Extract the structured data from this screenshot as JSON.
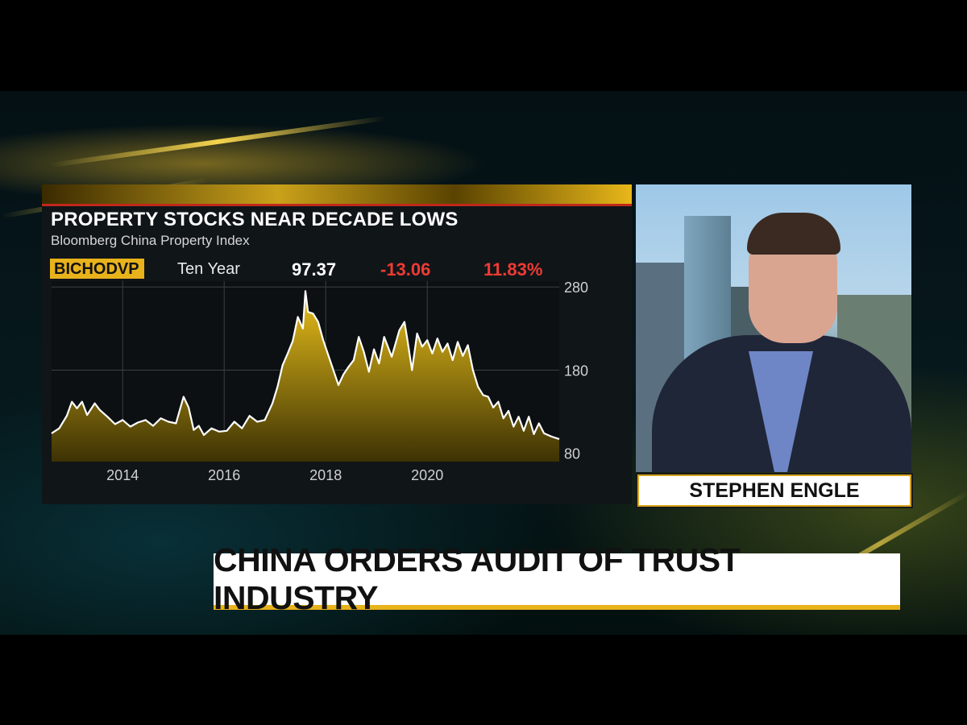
{
  "chart_data": {
    "type": "area",
    "title": "PROPERTY STOCKS NEAR DECADE LOWS",
    "subtitle": "Bloomberg China Property Index",
    "ticker": "BICHODVP",
    "period": "Ten Year",
    "last_value": "97.37",
    "change": "-13.06",
    "change_pct": "11.83%",
    "x_ticks": [
      2014,
      2016,
      2018,
      2020
    ],
    "y_ticks": [
      80,
      180,
      280
    ],
    "xlim": [
      2012.6,
      2022.6
    ],
    "ylim": [
      70,
      287
    ],
    "grid": true,
    "series": [
      {
        "x": [
          2012.6,
          2012.75,
          2012.9,
          2013.0,
          2013.1,
          2013.2,
          2013.3,
          2013.45,
          2013.55,
          2013.7,
          2013.85,
          2014.0,
          2014.15,
          2014.3,
          2014.45,
          2014.6,
          2014.75,
          2014.9,
          2015.05,
          2015.2,
          2015.3,
          2015.4,
          2015.5,
          2015.6,
          2015.75,
          2015.9,
          2016.05,
          2016.2,
          2016.35,
          2016.5,
          2016.65,
          2016.8,
          2016.95,
          2017.05,
          2017.15,
          2017.25,
          2017.35,
          2017.45,
          2017.55,
          2017.6,
          2017.65,
          2017.75,
          2017.85,
          2017.95,
          2018.05,
          2018.15,
          2018.25,
          2018.35,
          2018.45,
          2018.55,
          2018.65,
          2018.75,
          2018.85,
          2018.95,
          2019.05,
          2019.15,
          2019.3,
          2019.45,
          2019.55,
          2019.6,
          2019.7,
          2019.8,
          2019.9,
          2020.0,
          2020.1,
          2020.2,
          2020.3,
          2020.4,
          2020.5,
          2020.6,
          2020.7,
          2020.8,
          2020.9,
          2021.0,
          2021.1,
          2021.2,
          2021.3,
          2021.4,
          2021.5,
          2021.6,
          2021.7,
          2021.8,
          2021.9,
          2022.0,
          2022.1,
          2022.2,
          2022.3,
          2022.45,
          2022.6
        ],
        "y": [
          104,
          110,
          125,
          142,
          134,
          142,
          126,
          140,
          132,
          124,
          115,
          120,
          112,
          117,
          120,
          113,
          122,
          118,
          116,
          148,
          135,
          108,
          113,
          102,
          110,
          106,
          107,
          118,
          110,
          125,
          118,
          120,
          140,
          160,
          186,
          200,
          215,
          244,
          230,
          275,
          250,
          248,
          238,
          216,
          198,
          180,
          162,
          175,
          184,
          192,
          220,
          202,
          178,
          205,
          188,
          220,
          196,
          228,
          238,
          220,
          180,
          224,
          208,
          216,
          200,
          218,
          202,
          212,
          192,
          214,
          197,
          210,
          180,
          160,
          150,
          148,
          135,
          142,
          122,
          131,
          112,
          124,
          107,
          124,
          103,
          116,
          104,
          100,
          97
        ]
      }
    ]
  },
  "anchor_name": "STEPHEN ENGLE",
  "headline": "CHINA ORDERS AUDIT OF TRUST INDUSTRY"
}
